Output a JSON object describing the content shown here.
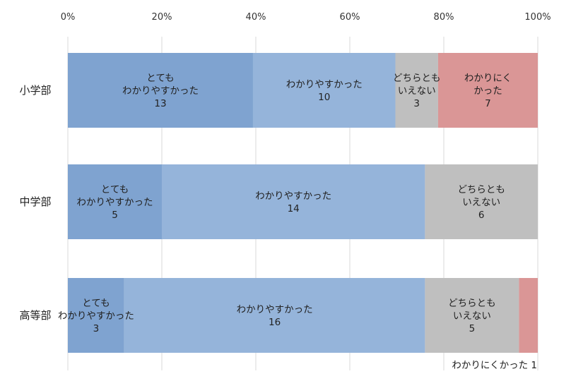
{
  "chart_data": {
    "type": "bar",
    "orientation": "horizontal",
    "stacked": "percent",
    "categories": [
      "小学部",
      "中学部",
      "高等部"
    ],
    "x_ticks": [
      "0%",
      "20%",
      "40%",
      "60%",
      "80%",
      "100%"
    ],
    "xlim": [
      0,
      100
    ],
    "x_axis_position": "top",
    "grid": "vertical",
    "series": [
      {
        "name": "とても\nわかりやすかった",
        "values": [
          13,
          5,
          3
        ],
        "color": "#7fa3d0"
      },
      {
        "name": "わかりやすかった",
        "values": [
          10,
          14,
          16
        ],
        "color": "#95b4da"
      },
      {
        "name": "どちらとも\nいえない",
        "values": [
          3,
          6,
          5
        ],
        "color": "#bfbfbf"
      },
      {
        "name": "わかりにく\nかった",
        "values": [
          7,
          0,
          1
        ],
        "color": "#da9696"
      }
    ],
    "callout": {
      "text": "わかりにくかった 1",
      "category": "高等部",
      "series": "わかりにく\nかった"
    }
  }
}
